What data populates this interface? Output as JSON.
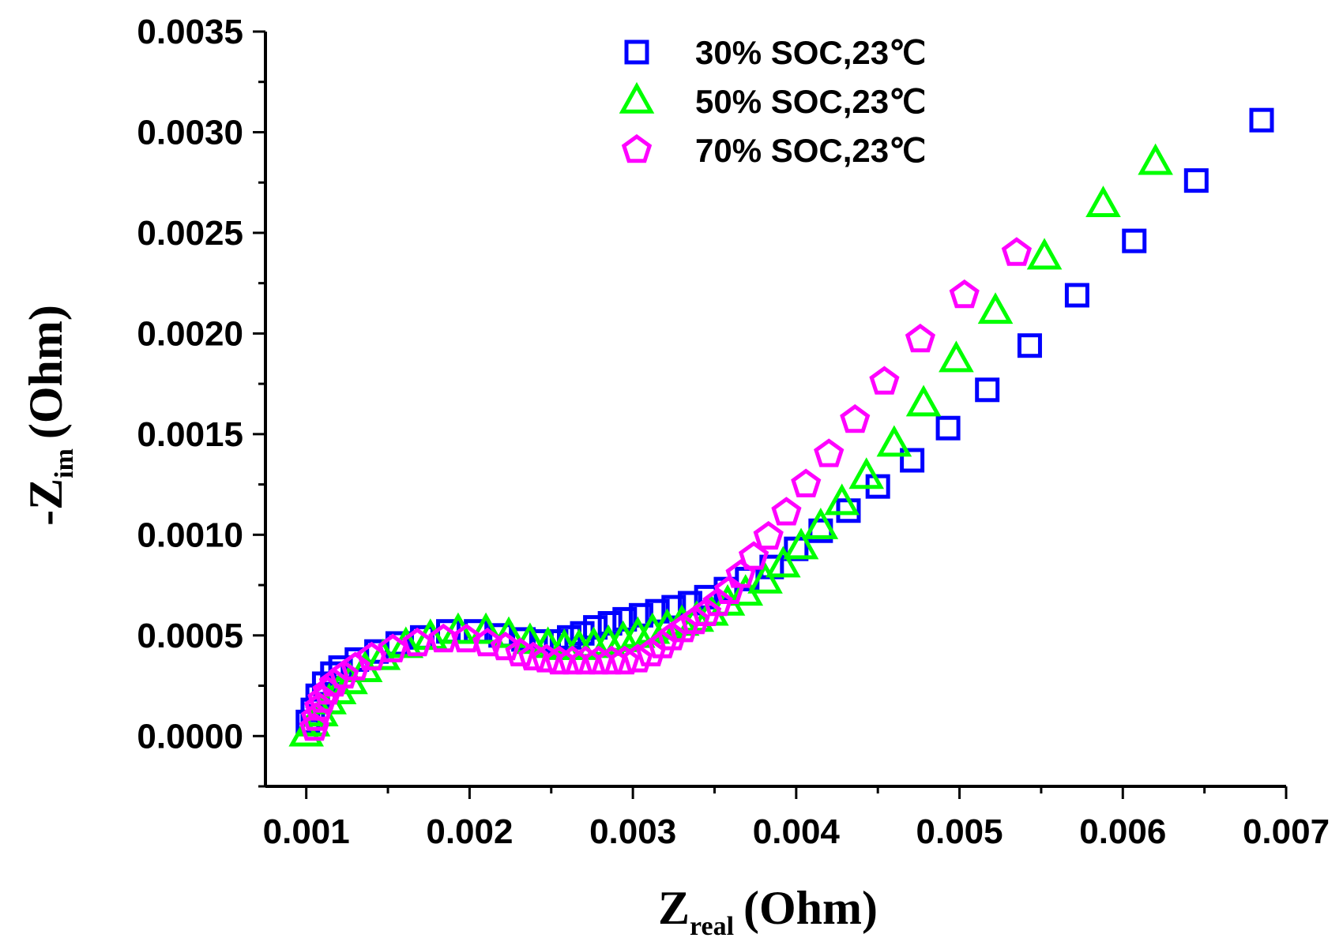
{
  "chart_data": {
    "type": "scatter",
    "title": "",
    "xlabel": {
      "main": "Z",
      "sub": "real",
      "unit": "(Ohm)"
    },
    "ylabel": {
      "prefix": "-Z",
      "sub": "im",
      "unit": "(Ohm)"
    },
    "xlim": [
      0.00075,
      0.007
    ],
    "ylim": [
      -0.00025,
      0.0035
    ],
    "x_ticks": [
      "0.001",
      "0.002",
      "0.003",
      "0.004",
      "0.005",
      "0.006",
      "0.007"
    ],
    "x_tick_values": [
      0.001,
      0.002,
      0.003,
      0.004,
      0.005,
      0.006,
      0.007
    ],
    "y_ticks": [
      "0.0000",
      "0.0005",
      "0.0010",
      "0.0015",
      "0.0020",
      "0.0025",
      "0.0030",
      "0.0035"
    ],
    "y_tick_values": [
      0.0,
      0.0005,
      0.001,
      0.0015,
      0.002,
      0.0025,
      0.003,
      0.0035
    ],
    "legend_position": "top-center",
    "series": [
      {
        "name": "30% SOC,23℃",
        "marker": "square",
        "color": "#0000ff",
        "points": [
          [
            0.00101,
            7e-05
          ],
          [
            0.00104,
            0.00013
          ],
          [
            0.00107,
            0.0002
          ],
          [
            0.00111,
            0.00026
          ],
          [
            0.00116,
            0.00031
          ],
          [
            0.00121,
            0.00034
          ],
          [
            0.00131,
            0.00038
          ],
          [
            0.00143,
            0.00042
          ],
          [
            0.00156,
            0.00046
          ],
          [
            0.00171,
            0.00049
          ],
          [
            0.00187,
            0.00052
          ],
          [
            0.00204,
            0.00052
          ],
          [
            0.00219,
            0.0005
          ],
          [
            0.00233,
            0.00048
          ],
          [
            0.00244,
            0.00047
          ],
          [
            0.00253,
            0.00047
          ],
          [
            0.00261,
            0.00049
          ],
          [
            0.00269,
            0.00051
          ],
          [
            0.00277,
            0.00054
          ],
          [
            0.00286,
            0.00056
          ],
          [
            0.00295,
            0.00058
          ],
          [
            0.00305,
            0.0006
          ],
          [
            0.00315,
            0.00062
          ],
          [
            0.00325,
            0.00064
          ],
          [
            0.00335,
            0.00066
          ],
          [
            0.00345,
            0.00069
          ],
          [
            0.00357,
            0.00073
          ],
          [
            0.0037,
            0.00078
          ],
          [
            0.00385,
            0.00084
          ],
          [
            0.004,
            0.00093
          ],
          [
            0.00415,
            0.00102
          ],
          [
            0.00432,
            0.00112
          ],
          [
            0.0045,
            0.00124
          ],
          [
            0.00471,
            0.00137
          ],
          [
            0.00493,
            0.00153
          ],
          [
            0.00517,
            0.00172
          ],
          [
            0.00543,
            0.00194
          ],
          [
            0.00572,
            0.00219
          ],
          [
            0.00607,
            0.00246
          ],
          [
            0.00645,
            0.00276
          ],
          [
            0.00685,
            0.00306
          ]
        ]
      },
      {
        "name": "50% SOC,23℃",
        "marker": "triangle",
        "color": "#00ff00",
        "points": [
          [
            0.001,
            1e-05
          ],
          [
            0.00104,
            6e-05
          ],
          [
            0.00109,
            0.00011
          ],
          [
            0.00114,
            0.00017
          ],
          [
            0.0012,
            0.00022
          ],
          [
            0.00127,
            0.00027
          ],
          [
            0.00136,
            0.00033
          ],
          [
            0.00147,
            0.00039
          ],
          [
            0.00161,
            0.00045
          ],
          [
            0.00176,
            0.00049
          ],
          [
            0.00193,
            0.00052
          ],
          [
            0.0021,
            0.00052
          ],
          [
            0.00224,
            0.0005
          ],
          [
            0.00237,
            0.00047
          ],
          [
            0.00248,
            0.00045
          ],
          [
            0.00258,
            0.00044
          ],
          [
            0.00267,
            0.00044
          ],
          [
            0.00276,
            0.00045
          ],
          [
            0.00285,
            0.00046
          ],
          [
            0.00294,
            0.00048
          ],
          [
            0.00303,
            0.0005
          ],
          [
            0.00312,
            0.00052
          ],
          [
            0.00321,
            0.00054
          ],
          [
            0.0033,
            0.00056
          ],
          [
            0.00339,
            0.00058
          ],
          [
            0.00348,
            0.00061
          ],
          [
            0.00358,
            0.00066
          ],
          [
            0.00369,
            0.00071
          ],
          [
            0.00381,
            0.00077
          ],
          [
            0.00392,
            0.00085
          ],
          [
            0.00403,
            0.00094
          ],
          [
            0.00415,
            0.00104
          ],
          [
            0.00428,
            0.00116
          ],
          [
            0.00443,
            0.00129
          ],
          [
            0.0046,
            0.00145
          ],
          [
            0.00478,
            0.00165
          ],
          [
            0.00498,
            0.00187
          ],
          [
            0.00522,
            0.00211
          ],
          [
            0.00552,
            0.00238
          ],
          [
            0.00588,
            0.00264
          ],
          [
            0.0062,
            0.00285
          ]
        ]
      },
      {
        "name": "70% SOC,23℃",
        "marker": "pentagon",
        "color": "#ff00ff",
        "points": [
          [
            0.00105,
            4e-05
          ],
          [
            0.00106,
            9e-05
          ],
          [
            0.00108,
            0.00014
          ],
          [
            0.0011,
            0.00018
          ],
          [
            0.00113,
            0.00022
          ],
          [
            0.00117,
            0.00026
          ],
          [
            0.00123,
            0.0003
          ],
          [
            0.0013,
            0.00034
          ],
          [
            0.0014,
            0.00039
          ],
          [
            0.00153,
            0.00043
          ],
          [
            0.00168,
            0.00046
          ],
          [
            0.00184,
            0.00048
          ],
          [
            0.00198,
            0.00048
          ],
          [
            0.00211,
            0.00046
          ],
          [
            0.00222,
            0.00044
          ],
          [
            0.00231,
            0.00041
          ],
          [
            0.00239,
            0.00039
          ],
          [
            0.00247,
            0.00038
          ],
          [
            0.00255,
            0.00037
          ],
          [
            0.00263,
            0.00037
          ],
          [
            0.00271,
            0.00037
          ],
          [
            0.00279,
            0.00037
          ],
          [
            0.00287,
            0.00037
          ],
          [
            0.00295,
            0.00037
          ],
          [
            0.00303,
            0.00038
          ],
          [
            0.00311,
            0.00041
          ],
          [
            0.00318,
            0.00045
          ],
          [
            0.00324,
            0.00049
          ],
          [
            0.00331,
            0.00053
          ],
          [
            0.00338,
            0.00057
          ],
          [
            0.00345,
            0.00061
          ],
          [
            0.00352,
            0.00066
          ],
          [
            0.00359,
            0.00072
          ],
          [
            0.00366,
            0.0008
          ],
          [
            0.00374,
            0.00089
          ],
          [
            0.00383,
            0.00099
          ],
          [
            0.00394,
            0.00111
          ],
          [
            0.00406,
            0.00125
          ],
          [
            0.0042,
            0.0014
          ],
          [
            0.00436,
            0.00157
          ],
          [
            0.00454,
            0.00176
          ],
          [
            0.00476,
            0.00197
          ],
          [
            0.00503,
            0.00219
          ],
          [
            0.00535,
            0.0024
          ]
        ]
      }
    ]
  }
}
